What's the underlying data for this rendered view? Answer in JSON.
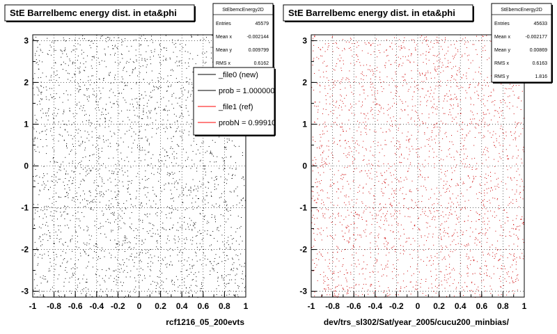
{
  "panels": [
    {
      "title": "StE Barrelbemc energy dist. in eta&phi",
      "xlabel": "rcf1216_05_200evts",
      "stats": {
        "name": "StEbemcEnergy2D",
        "rows": [
          {
            "label": "Entries",
            "value": "45579"
          },
          {
            "label": "Mean x",
            "value": "-0.002144"
          },
          {
            "label": "Mean y",
            "value": "0.009799"
          },
          {
            "label": "RMS x",
            "value": "0.6162"
          },
          {
            "label": "RMS y",
            "value": "1.815"
          }
        ]
      },
      "legend": [
        {
          "label": "_file0 (new)",
          "color": "#000000"
        },
        {
          "label": "prob = 1.000000",
          "color": "#000000"
        },
        {
          "label": "_file1 (ref)",
          "color": "#ff0000"
        },
        {
          "label": "probN = 0.999105",
          "color": "#ff0000"
        }
      ],
      "point_color": "#000000"
    },
    {
      "title": "StE Barrelbemc energy dist. in eta&phi",
      "xlabel": "dev/trs_sl302/Sat/year_2005/cucu200_minbias/",
      "stats": {
        "name": "StEbemcEnergy2D",
        "rows": [
          {
            "label": "Entries",
            "value": "45633"
          },
          {
            "label": "Mean x",
            "value": "-0.002177"
          },
          {
            "label": "Mean y",
            "value": "0.00869"
          },
          {
            "label": "RMS x",
            "value": "0.6163"
          },
          {
            "label": "RMS y",
            "value": "1.816"
          }
        ]
      },
      "legend": [],
      "point_color": "#cc0000"
    }
  ],
  "chart_data": [
    {
      "type": "scatter",
      "title": "StE Barrelbemc energy dist. in eta&phi",
      "xlabel": "rcf1216_05_200evts",
      "ylabel": "",
      "xlim": [
        -1,
        1
      ],
      "ylim": [
        -3.14,
        3.14
      ],
      "x_ticks": [
        "-1",
        "-0.8",
        "-0.6",
        "-0.4",
        "-0.2",
        "0",
        "0.2",
        "0.4",
        "0.6",
        "0.8",
        "1"
      ],
      "y_ticks": [
        "-3",
        "-2",
        "-1",
        "0",
        "1",
        "2",
        "3"
      ],
      "grid": true,
      "series": [
        {
          "name": "_file0 (new)",
          "distribution": "uniform",
          "x_range": [
            -1,
            1
          ],
          "y_range": [
            -3.14,
            3.14
          ],
          "entries": 45579
        }
      ]
    },
    {
      "type": "scatter",
      "title": "StE Barrelbemc energy dist. in eta&phi",
      "xlabel": "dev/trs_sl302/Sat/year_2005/cucu200_minbias/",
      "ylabel": "",
      "xlim": [
        -1,
        1
      ],
      "ylim": [
        -3.14,
        3.14
      ],
      "x_ticks": [
        "-1",
        "-0.8",
        "-0.6",
        "-0.4",
        "-0.2",
        "0",
        "0.2",
        "0.4",
        "0.6",
        "0.8",
        "1"
      ],
      "y_ticks": [
        "-3",
        "-2",
        "-1",
        "0",
        "1",
        "2",
        "3"
      ],
      "grid": true,
      "series": [
        {
          "name": "_file1 (ref)",
          "distribution": "uniform",
          "x_range": [
            -1,
            1
          ],
          "y_range": [
            -3.14,
            3.14
          ],
          "entries": 45633
        }
      ]
    }
  ]
}
